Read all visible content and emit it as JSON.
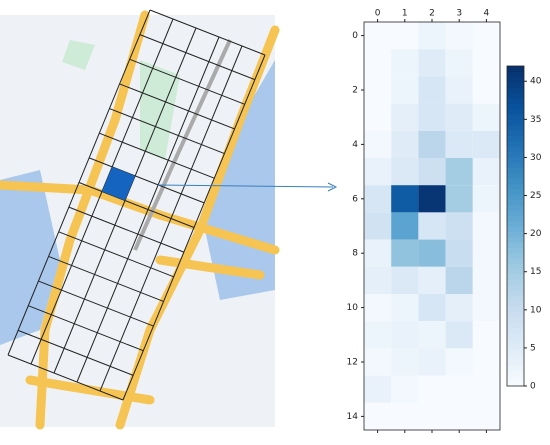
{
  "chart_data": {
    "type": "heatmap",
    "cmap": "Blues",
    "z": [
      [
        0,
        0,
        2,
        1,
        0
      ],
      [
        0,
        2,
        5,
        2,
        0
      ],
      [
        0,
        2,
        7,
        3,
        0
      ],
      [
        0,
        4,
        7,
        5,
        2
      ],
      [
        1,
        5,
        12,
        6,
        6
      ],
      [
        3,
        6,
        9,
        15,
        3
      ],
      [
        7,
        35,
        41,
        15,
        2
      ],
      [
        8,
        23,
        7,
        9,
        1
      ],
      [
        3,
        17,
        18,
        10,
        1
      ],
      [
        4,
        6,
        4,
        12,
        1
      ],
      [
        1,
        2,
        7,
        4,
        1
      ],
      [
        2,
        3,
        2,
        6,
        0
      ],
      [
        1,
        2,
        3,
        1,
        0
      ],
      [
        3,
        1,
        0,
        0,
        0
      ],
      [
        0,
        0,
        0,
        0,
        0
      ]
    ],
    "xlim": [
      -0.5,
      4.5
    ],
    "ylim": [
      14.5,
      -0.5
    ],
    "xticks": [
      0,
      1,
      2,
      3,
      4
    ],
    "yticks": [
      0,
      2,
      4,
      6,
      8,
      10,
      12,
      14
    ],
    "clim": [
      0,
      42
    ],
    "cticks": [
      0,
      5,
      10,
      15,
      20,
      25,
      30,
      35,
      40
    ]
  }
}
